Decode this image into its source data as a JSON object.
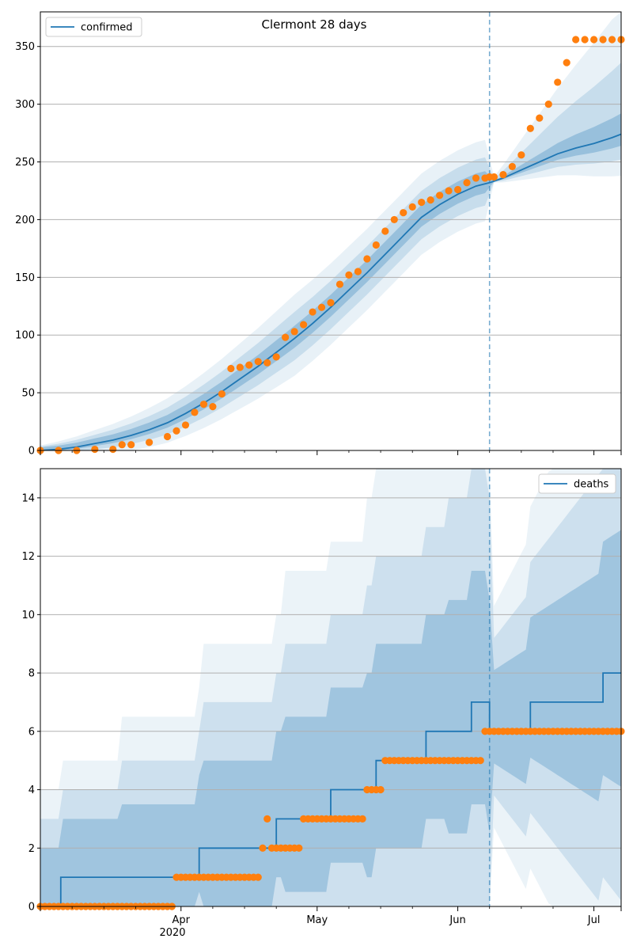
{
  "chart_data": [
    {
      "type": "line",
      "title": "Clermont 28 days",
      "legend": {
        "label": "confirmed",
        "position": "top-left"
      },
      "x_ticks": [
        "",
        "Apr",
        "May",
        "Jun",
        "Jul",
        ""
      ],
      "x_year_label": "2020",
      "x_range_days": [
        0,
        128
      ],
      "y_range": [
        0,
        380
      ],
      "y_ticks": [
        0,
        50,
        100,
        150,
        200,
        250,
        300,
        350
      ],
      "grid": "y",
      "forecast_start_day": 99,
      "colors": {
        "line": "#1f77b4",
        "points": "#ff7f0e",
        "band": "#1f77b4"
      },
      "series": [
        {
          "name": "confirmed",
          "kind": "median line",
          "x_day": [
            0,
            4,
            8,
            12,
            16,
            20,
            24,
            28,
            32,
            36,
            40,
            44,
            48,
            52,
            56,
            60,
            64,
            68,
            72,
            76,
            80,
            84,
            88,
            92,
            96,
            99,
            102,
            106,
            110,
            114,
            118,
            122,
            126,
            128
          ],
          "y": [
            0,
            1,
            3,
            6,
            9,
            13,
            18,
            24,
            32,
            41,
            51,
            62,
            73,
            85,
            97,
            110,
            124,
            139,
            154,
            170,
            186,
            202,
            213,
            222,
            229,
            232,
            236,
            243,
            250,
            257,
            262,
            266,
            271,
            274
          ]
        },
        {
          "name": "observed",
          "kind": "points",
          "x_day": [
            0,
            4,
            8,
            12,
            16,
            18,
            20,
            24,
            28,
            30,
            32,
            34,
            36,
            38,
            40,
            42,
            44,
            46,
            48,
            50,
            52,
            54,
            56,
            58,
            60,
            62,
            64,
            66,
            68,
            70,
            72,
            74,
            76,
            78,
            80,
            82,
            84,
            86,
            88,
            90,
            92,
            94,
            96,
            98,
            99,
            100,
            102,
            104,
            106,
            108,
            110,
            112,
            114,
            116,
            118,
            120,
            122,
            124,
            126,
            128
          ],
          "y": [
            0,
            0,
            0,
            1,
            1,
            5,
            5,
            7,
            12,
            17,
            22,
            33,
            40,
            38,
            49,
            71,
            72,
            74,
            77,
            76,
            81,
            98,
            103,
            109,
            120,
            124,
            128,
            144,
            152,
            155,
            166,
            178,
            190,
            200,
            206,
            211,
            215,
            217,
            221,
            225,
            226,
            232,
            236,
            236,
            237,
            237,
            239,
            246,
            256,
            279,
            288,
            300,
            319,
            336,
            356,
            356,
            356,
            356,
            356,
            356
          ]
        }
      ]
    },
    {
      "type": "line",
      "legend": {
        "label": "deaths",
        "position": "top-right"
      },
      "x_ticks": [
        "",
        "Apr",
        "May",
        "Jun",
        "Jul",
        ""
      ],
      "x_year_label": "2020",
      "x_range_days": [
        0,
        128
      ],
      "y_range": [
        0,
        15
      ],
      "y_ticks": [
        0,
        2,
        4,
        6,
        8,
        10,
        12,
        14
      ],
      "grid": "y",
      "forecast_start_day": 99,
      "series": [
        {
          "name": "deaths",
          "kind": "median step line",
          "steps": [
            [
              0,
              0
            ],
            [
              4.5,
              1
            ],
            [
              35,
              2
            ],
            [
              52,
              3
            ],
            [
              64,
              4
            ],
            [
              74,
              5
            ],
            [
              85,
              6
            ],
            [
              95,
              7
            ],
            [
              99,
              6
            ],
            [
              108,
              7
            ],
            [
              124,
              8
            ],
            [
              128,
              8
            ]
          ]
        },
        {
          "name": "observed",
          "kind": "points",
          "x_day": [
            0,
            1,
            2,
            3,
            4,
            5,
            6,
            7,
            8,
            9,
            10,
            11,
            12,
            13,
            14,
            15,
            16,
            17,
            18,
            19,
            20,
            21,
            22,
            23,
            24,
            25,
            26,
            27,
            28,
            29,
            30,
            31,
            32,
            33,
            34,
            35,
            36,
            37,
            38,
            39,
            40,
            41,
            42,
            43,
            44,
            45,
            46,
            47,
            48,
            49,
            50,
            51,
            52,
            53,
            54,
            55,
            56,
            57,
            58,
            59,
            60,
            61,
            62,
            63,
            64,
            65,
            66,
            67,
            68,
            69,
            70,
            71,
            72,
            73,
            74,
            75,
            76,
            77,
            78,
            79,
            80,
            81,
            82,
            83,
            84,
            85,
            86,
            87,
            88,
            89,
            90,
            91,
            92,
            93,
            94,
            95,
            96,
            97,
            98,
            99,
            100,
            101,
            102,
            103,
            104,
            105,
            106,
            107,
            108,
            109,
            110,
            111,
            112,
            113,
            114,
            115,
            116,
            117,
            118,
            119,
            120,
            121,
            122,
            123,
            124,
            125,
            126,
            127,
            128
          ],
          "y": [
            0,
            0,
            0,
            0,
            0,
            0,
            0,
            0,
            0,
            0,
            0,
            0,
            0,
            0,
            0,
            0,
            0,
            0,
            0,
            0,
            0,
            0,
            0,
            0,
            0,
            0,
            0,
            0,
            0,
            0,
            1,
            1,
            1,
            1,
            1,
            1,
            1,
            1,
            1,
            1,
            1,
            1,
            1,
            1,
            1,
            1,
            1,
            1,
            1,
            2,
            3,
            2,
            2,
            2,
            2,
            2,
            2,
            2,
            3,
            3,
            3,
            3,
            3,
            3,
            3,
            3,
            3,
            3,
            3,
            3,
            3,
            3,
            4,
            4,
            4,
            4,
            5,
            5,
            5,
            5,
            5,
            5,
            5,
            5,
            5,
            5,
            5,
            5,
            5,
            5,
            5,
            5,
            5,
            5,
            5,
            5,
            5,
            5,
            6,
            6,
            6,
            6,
            6,
            6,
            6,
            6,
            6,
            6,
            6,
            6,
            6,
            6,
            6,
            6,
            6,
            6,
            6,
            6,
            6,
            6,
            6,
            6,
            6,
            6,
            6,
            6,
            6,
            6,
            6
          ]
        }
      ]
    }
  ]
}
